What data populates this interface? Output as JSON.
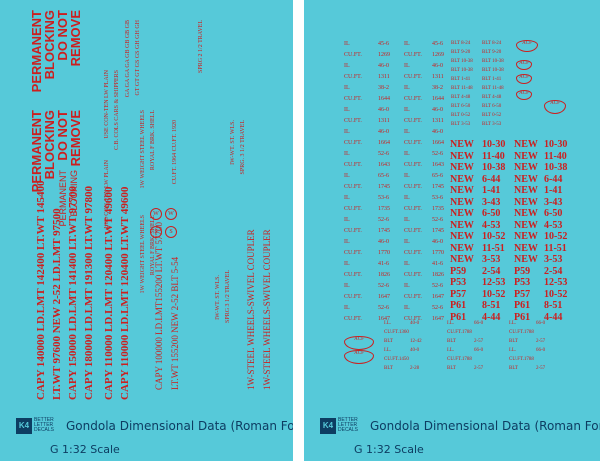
{
  "footer": {
    "logo_mark": "K4",
    "logo_text": "BETTER LETTER DECALS",
    "title": "Gondola Dimensional Data (Roman Font)",
    "scale": "G 1:32 Scale"
  },
  "left": {
    "cols": [
      "CAPY 140000  LD.LMT 142400  LT.WT 145400",
      "LT.WT 97600  NEW 2-52  LD.LMT 97500",
      "CAPY 150000  LD.LMT 141400  LT.WT 97700",
      "CAPY 180000  LD.LMT 191300  LT.WT 97800",
      "CAPY 110000  LD.LMT 120400  LT.WT 49600",
      "CAPY 110000  LD.LMT 120400  LT.WT 49600",
      "CAPY 100000  LD.LMT155200  LT.WT 57700",
      "LT.WT 155200  NEW 2-52  BLT 5-54",
      "1W-STEEL WHEELS-SWIVEL COUPLER",
      "1W-STEEL WHEELS-SWIVEL COUPLER"
    ],
    "perm": [
      "PERMANENT",
      "BLOCKING",
      "DO NOT",
      "REMOVE"
    ],
    "perm_thin": [
      "PERMANENT",
      "BLOCKING"
    ],
    "small_cols": [
      "1W WEIGHT STEEL WHEELS",
      "ROYAL F  BRK. SHELL",
      "1W WEIGHT STEEL WHEELS",
      "ROYAL F  BRK. SHELL",
      "IW-WT. ST. WLS.",
      "SPRG 3 1/2 TRAVEL",
      "IW-WT. ST. WLS.",
      "SPRG. 3 1/2 TRAVEL",
      "USE CON-TEN  LW PLAIN",
      "USE CON-TEN  LW PLAIN",
      "C.B. COLS  CARS & SHIPPERS",
      "GA GA GA GA GB GB GB GB",
      "GT GT GT GS GS GH GH GH",
      "CU.FT. 1964  CU.FT. 1920",
      "SPRG 2 1/2  TRAVEL"
    ],
    "circles": [
      "W",
      "W",
      "S",
      "S"
    ]
  },
  "right": {
    "rows": [
      [
        "IL",
        "45-6",
        "IL",
        "45-6"
      ],
      [
        "CU.FT.",
        "1269",
        "CU.FT.",
        "1269"
      ],
      [
        "IL",
        "46-0",
        "IL",
        "46-0"
      ],
      [
        "CU.FT.",
        "1311",
        "CU.FT.",
        "1311"
      ],
      [
        "IL",
        "38-2",
        "IL",
        "38-2"
      ],
      [
        "CU.FT.",
        "1644",
        "CU.FT.",
        "1644"
      ],
      [
        "IL",
        "46-0",
        "IL",
        "46-0"
      ],
      [
        "CU.FT.",
        "1311",
        "CU.FT.",
        "1311"
      ],
      [
        "IL",
        "46-0",
        "IL",
        "46-0"
      ],
      [
        "CU.FT.",
        "1664",
        "CU.FT.",
        "1664"
      ],
      [
        "IL",
        "52-6",
        "IL",
        "52-6"
      ],
      [
        "CU.FT.",
        "1643",
        "CU.FT.",
        "1643"
      ],
      [
        "IL",
        "65-6",
        "IL",
        "65-6"
      ],
      [
        "CU.FT.",
        "1745",
        "CU.FT.",
        "1745"
      ],
      [
        "IL",
        "53-6",
        "IL",
        "53-6"
      ],
      [
        "CU.FT.",
        "1735",
        "CU.FT.",
        "1735"
      ],
      [
        "IL",
        "52-6",
        "IL",
        "52-6"
      ],
      [
        "CU.FT.",
        "1745",
        "CU.FT.",
        "1745"
      ],
      [
        "IL",
        "46-0",
        "IL",
        "46-0"
      ],
      [
        "CU.FT.",
        "1770",
        "CU.FT.",
        "1770"
      ],
      [
        "IL",
        "41-6",
        "IL",
        "41-6"
      ],
      [
        "CU.FT.",
        "1826",
        "CU.FT.",
        "1826"
      ],
      [
        "IL",
        "52-6",
        "IL",
        "52-6"
      ],
      [
        "CU.FT.",
        "1647",
        "CU.FT.",
        "1647"
      ],
      [
        "IL",
        "52-6",
        "IL",
        "52-6"
      ],
      [
        "CU.FT.",
        "1647",
        "CU.FT.",
        "1647"
      ]
    ],
    "blt_rows": [
      [
        "BLT 8-24",
        "BLT 8-24"
      ],
      [
        "BLT 9-20",
        "BLT 9-20"
      ],
      [
        "BLT 10-38",
        "BLT 10-38"
      ],
      [
        "BLT 10-38",
        "BLT 10-38"
      ],
      [
        "BLT 1-41",
        "BLT 1-41"
      ],
      [
        "BLT 11-48",
        "BLT 11-48"
      ],
      [
        "BLT 4-48",
        "BLT 4-48"
      ],
      [
        "BLT 6-50",
        "BLT 6-50"
      ],
      [
        "BLT 0-52",
        "BLT 0-52"
      ],
      [
        "BLT 3-53",
        "BLT 3-53"
      ]
    ],
    "big_rows": [
      [
        "NEW",
        "10-30",
        "NEW",
        "10-30"
      ],
      [
        "NEW",
        "11-40",
        "NEW",
        "11-40"
      ],
      [
        "NEW",
        "10-38",
        "NEW",
        "10-38"
      ],
      [
        "NEW",
        "6-44",
        "NEW",
        "6-44"
      ],
      [
        "NEW",
        "1-41",
        "NEW",
        "1-41"
      ],
      [
        "NEW",
        "3-43",
        "NEW",
        "3-43"
      ],
      [
        "NEW",
        "6-50",
        "NEW",
        "6-50"
      ],
      [
        "NEW",
        "4-53",
        "NEW",
        "4-53"
      ],
      [
        "NEW",
        "10-52",
        "NEW",
        "10-52"
      ],
      [
        "NEW",
        "11-51",
        "NEW",
        "11-51"
      ],
      [
        "NEW",
        "3-53",
        "NEW",
        "3-53"
      ],
      [
        "P59",
        "2-54",
        "P59",
        "2-54"
      ],
      [
        "P53",
        "12-53",
        "P53",
        "12-53"
      ],
      [
        "P57",
        "10-52",
        "P57",
        "10-52"
      ],
      [
        "P61",
        "8-51",
        "P61",
        "8-51"
      ],
      [
        "P61",
        "4-44",
        "P61",
        "4-44"
      ]
    ],
    "bottom": [
      [
        "I.L.",
        "40-0",
        "I.L.",
        "66-0",
        "I.L.",
        "66-0"
      ],
      [
        "CU.FT.1360",
        "",
        "CU.FT.1788",
        "",
        "CU.FT.1788",
        ""
      ],
      [
        "BLT",
        "12-42",
        "BLT",
        "2-57",
        "BLT",
        "2-57"
      ],
      [
        "I.L.",
        "40-0",
        "I.L.",
        "66-0",
        "I.L.",
        "66-0"
      ],
      [
        "CU.FT.1450",
        "",
        "CU.FT.1788",
        "",
        "CU.FT.1788",
        ""
      ],
      [
        "BLT",
        "2-28",
        "BLT",
        "2-57",
        "BLT",
        "2-57"
      ]
    ],
    "acf_labels": [
      "ACF",
      "ACF",
      "ACF",
      "ACF",
      "ACF",
      "ACF",
      "ACF"
    ]
  }
}
